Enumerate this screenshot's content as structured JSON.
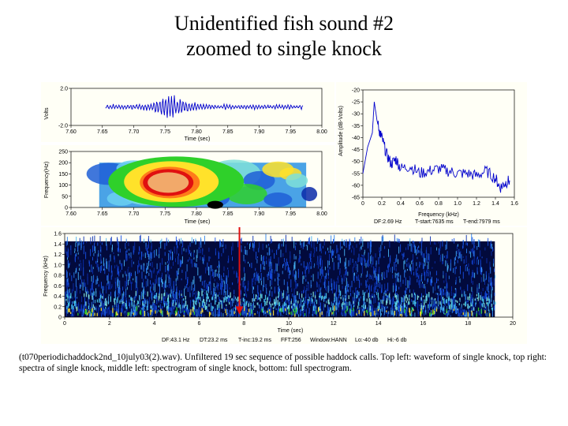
{
  "title": {
    "line1": "Unidentified fish sound #2",
    "line2": "zoomed to single knock"
  },
  "caption": "(t070periodichaddock2nd_10july03(2).wav). Unfiltered 19 sec sequence of possible haddock calls. Top left: waveform of single knock, top right: spectra of single knock, middle left: spectrogram of single knock, bottom: full spectrogram.",
  "chart_data": [
    {
      "type": "line",
      "name": "waveform",
      "ylabel": "Volts",
      "xlabel": "Time (sec)",
      "xlim": [
        7.6,
        8.0
      ],
      "ylim": [
        -2.0,
        2.0
      ],
      "x_ticks": [
        "7.60",
        "7.65",
        "7.70",
        "7.75",
        "7.80",
        "7.85",
        "7.90",
        "7.95",
        "8.00"
      ],
      "y_ticks": [
        "2.0",
        "-2.0"
      ],
      "series_color": "#0000cc"
    },
    {
      "type": "heatmap",
      "name": "knock-spectrogram",
      "ylabel": "Frequency(Hz)",
      "xlabel": "Time (sec)",
      "xlim": [
        7.6,
        8.0
      ],
      "ylim": [
        0,
        250
      ],
      "x_ticks": [
        "7.60",
        "7.65",
        "7.70",
        "7.75",
        "7.80",
        "7.85",
        "7.90",
        "7.95",
        "8.00"
      ],
      "y_ticks": [
        "250",
        "200",
        "150",
        "100",
        "50",
        "0"
      ]
    },
    {
      "type": "line",
      "name": "spectrum",
      "ylabel": "Amplitude (dB-Volts)",
      "xlabel": "Frequency (kHz)",
      "xlim": [
        0,
        1.6
      ],
      "ylim": [
        -65,
        -20
      ],
      "x_ticks": [
        "0",
        "0.2",
        "0.4",
        "0.6",
        "0.8",
        "1.0",
        "1.2",
        "1.4",
        "1.6"
      ],
      "y_ticks": [
        "-20",
        "-25",
        "-30",
        "-35",
        "-40",
        "-45",
        "-50",
        "-55",
        "-60",
        "-65"
      ],
      "x": [
        0.0,
        0.05,
        0.1,
        0.12,
        0.15,
        0.18,
        0.2,
        0.25,
        0.3,
        0.35,
        0.4,
        0.5,
        0.6,
        0.7,
        0.8,
        0.9,
        1.0,
        1.1,
        1.2,
        1.3,
        1.4,
        1.45,
        1.5,
        1.55
      ],
      "y": [
        -55,
        -44,
        -38,
        -25,
        -33,
        -38,
        -40,
        -47,
        -51,
        -49,
        -53,
        -52,
        -55,
        -54,
        -53,
        -54,
        -55,
        -55,
        -56,
        -54,
        -57,
        -61,
        -59,
        -58
      ],
      "series_color": "#0000cc",
      "info": {
        "df": "DF:2.69 Hz",
        "t_start": "T-start:7635 ms",
        "t_end": "T-end:7979 ms"
      }
    },
    {
      "type": "heatmap",
      "name": "full-spectrogram",
      "ylabel": "Frequency (kHz)",
      "xlabel": "Time (sec)",
      "xlim": [
        0,
        20
      ],
      "ylim": [
        0,
        1.6
      ],
      "x_ticks": [
        "0",
        "2",
        "4",
        "6",
        "8",
        "10",
        "12",
        "14",
        "16",
        "18",
        "20"
      ],
      "y_ticks": [
        "1.6",
        "1.4",
        "1.2",
        "1.0",
        "0.8",
        "0.6",
        "0.4",
        "0.2",
        "0"
      ],
      "marker_time": 7.8,
      "info": {
        "df": "DF:43.1 Hz",
        "dt": "DT:23.2 ms",
        "tinc": "T-inc:19.2 ms",
        "fft": "FFT:256",
        "window": "Window:HANN",
        "lo": "Lo:-40 db",
        "hi": "Hi:-6 db"
      }
    }
  ]
}
